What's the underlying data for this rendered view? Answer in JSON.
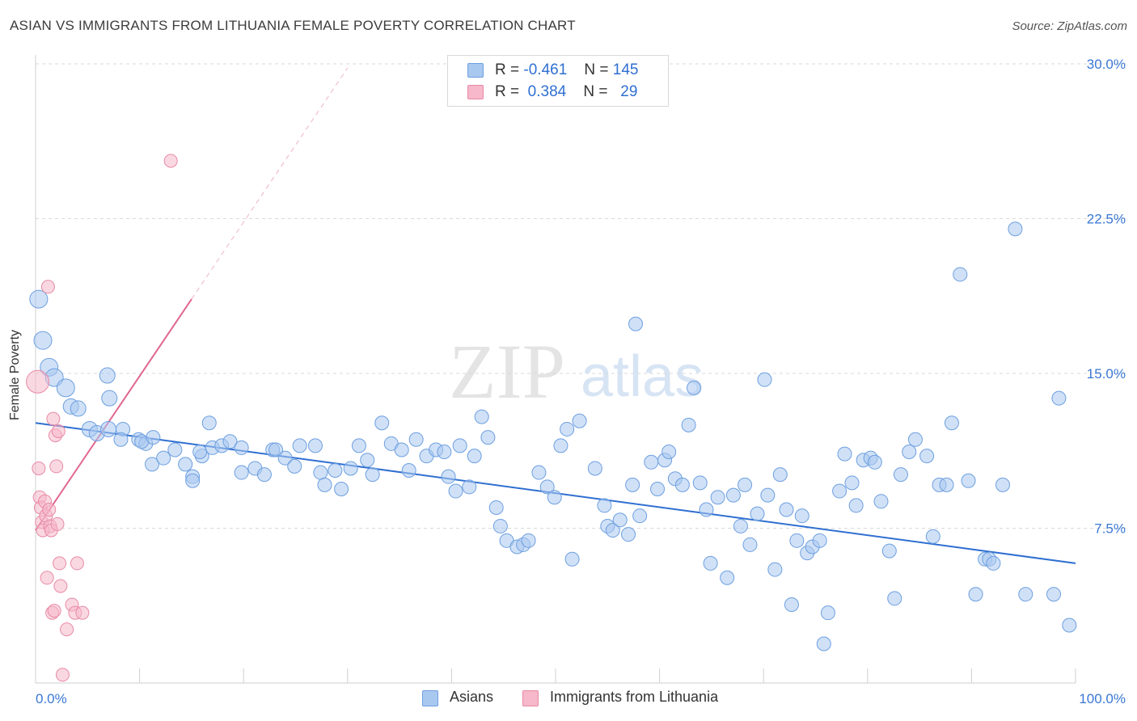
{
  "header": {
    "title": "ASIAN VS IMMIGRANTS FROM LITHUANIA FEMALE POVERTY CORRELATION CHART",
    "source": "Source: ZipAtlas.com"
  },
  "watermark": {
    "zip": "ZIP",
    "atlas": "atlas"
  },
  "legend": {
    "rows": [
      {
        "r_label": "R =",
        "r_value": "-0.461",
        "n_label": "N =",
        "n_value": "145",
        "color": "#a9c8f0"
      },
      {
        "r_label": "R =",
        "r_value": "0.384",
        "n_label": "N =",
        "n_value": "29",
        "color": "#f6b8ca"
      }
    ],
    "bottom": [
      {
        "label": "Asians",
        "color": "#a9c8f0"
      },
      {
        "label": "Immigrants from Lithuania",
        "color": "#f6b8ca"
      }
    ]
  },
  "colors": {
    "blue_fill": "#a9c8f0",
    "blue_stroke": "#6d9fe0",
    "blue_line": "#2f6fd1",
    "pink_fill": "#f6b8ca",
    "pink_stroke": "#e88aa6",
    "pink_line": "#e06690",
    "grid": "#d9d9d9",
    "axis_text": "#3a78d4"
  },
  "chart_data": {
    "type": "scatter",
    "title": "ASIAN VS IMMIGRANTS FROM LITHUANIA FEMALE POVERTY CORRELATION CHART",
    "xlabel": "",
    "ylabel": "Female Poverty",
    "xlim": [
      0,
      100
    ],
    "ylim": [
      0,
      30
    ],
    "x_tick_labels": [
      "0.0%",
      "100.0%"
    ],
    "y_ticks": [
      7.5,
      15.0,
      22.5,
      30.0
    ],
    "y_tick_labels": [
      "7.5%",
      "15.0%",
      "22.5%",
      "30.0%"
    ],
    "grid": "horizontal dashed",
    "series": [
      {
        "name": "Asians",
        "color": "#a9c8f0",
        "trend": {
          "x": [
            0,
            100
          ],
          "y": [
            12.6,
            5.8
          ]
        },
        "points": [
          [
            0.3,
            18.6
          ],
          [
            0.7,
            16.6
          ],
          [
            1.3,
            15.3
          ],
          [
            1.8,
            14.8
          ],
          [
            2.9,
            14.3
          ],
          [
            3.4,
            13.4
          ],
          [
            4.1,
            13.3
          ],
          [
            6.9,
            14.9
          ],
          [
            7.1,
            13.8
          ],
          [
            5.2,
            12.3
          ],
          [
            5.9,
            12.1
          ],
          [
            7.0,
            12.3
          ],
          [
            8.4,
            12.3
          ],
          [
            8.2,
            11.8
          ],
          [
            9.9,
            11.8
          ],
          [
            10.6,
            11.6
          ],
          [
            10.2,
            11.7
          ],
          [
            11.3,
            11.9
          ],
          [
            11.2,
            10.6
          ],
          [
            12.3,
            10.9
          ],
          [
            13.4,
            11.3
          ],
          [
            14.4,
            10.6
          ],
          [
            15.1,
            10.0
          ],
          [
            15.1,
            9.8
          ],
          [
            16.0,
            11.0
          ],
          [
            16.7,
            12.6
          ],
          [
            15.8,
            11.2
          ],
          [
            17.0,
            11.4
          ],
          [
            17.9,
            11.5
          ],
          [
            18.7,
            11.7
          ],
          [
            19.8,
            11.4
          ],
          [
            19.8,
            10.2
          ],
          [
            21.1,
            10.4
          ],
          [
            22.0,
            10.1
          ],
          [
            22.8,
            11.3
          ],
          [
            23.1,
            11.3
          ],
          [
            24.0,
            10.9
          ],
          [
            24.9,
            10.5
          ],
          [
            25.4,
            11.5
          ],
          [
            26.9,
            11.5
          ],
          [
            27.4,
            10.2
          ],
          [
            27.8,
            9.6
          ],
          [
            28.8,
            10.3
          ],
          [
            29.4,
            9.4
          ],
          [
            30.3,
            10.4
          ],
          [
            31.1,
            11.5
          ],
          [
            31.9,
            10.8
          ],
          [
            32.4,
            10.1
          ],
          [
            33.3,
            12.6
          ],
          [
            34.2,
            11.6
          ],
          [
            35.2,
            11.3
          ],
          [
            35.9,
            10.3
          ],
          [
            36.6,
            11.8
          ],
          [
            37.6,
            11.0
          ],
          [
            38.5,
            11.3
          ],
          [
            39.3,
            11.2
          ],
          [
            39.7,
            10.0
          ],
          [
            40.4,
            9.3
          ],
          [
            40.8,
            11.5
          ],
          [
            41.7,
            9.5
          ],
          [
            42.2,
            11.0
          ],
          [
            42.9,
            12.9
          ],
          [
            43.5,
            11.9
          ],
          [
            44.3,
            8.5
          ],
          [
            44.7,
            7.6
          ],
          [
            45.3,
            6.9
          ],
          [
            46.3,
            6.6
          ],
          [
            46.9,
            6.7
          ],
          [
            47.4,
            6.9
          ],
          [
            48.4,
            10.2
          ],
          [
            49.2,
            9.5
          ],
          [
            49.9,
            9.0
          ],
          [
            50.5,
            11.5
          ],
          [
            51.1,
            12.3
          ],
          [
            51.6,
            6.0
          ],
          [
            52.3,
            12.7
          ],
          [
            53.8,
            10.4
          ],
          [
            54.7,
            8.6
          ],
          [
            55.0,
            7.6
          ],
          [
            55.5,
            7.4
          ],
          [
            56.2,
            7.9
          ],
          [
            57.0,
            7.2
          ],
          [
            57.4,
            9.6
          ],
          [
            57.7,
            17.4
          ],
          [
            58.1,
            8.1
          ],
          [
            59.2,
            10.7
          ],
          [
            59.8,
            9.4
          ],
          [
            60.5,
            10.8
          ],
          [
            60.9,
            11.2
          ],
          [
            61.5,
            9.9
          ],
          [
            62.2,
            9.6
          ],
          [
            62.8,
            12.5
          ],
          [
            63.3,
            14.3
          ],
          [
            63.9,
            9.7
          ],
          [
            64.5,
            8.4
          ],
          [
            64.9,
            5.8
          ],
          [
            65.6,
            9.0
          ],
          [
            66.5,
            5.1
          ],
          [
            67.1,
            9.1
          ],
          [
            67.8,
            7.6
          ],
          [
            68.2,
            9.6
          ],
          [
            68.7,
            6.7
          ],
          [
            69.4,
            8.2
          ],
          [
            70.1,
            14.7
          ],
          [
            70.4,
            9.1
          ],
          [
            71.1,
            5.5
          ],
          [
            71.6,
            10.1
          ],
          [
            72.2,
            8.4
          ],
          [
            72.7,
            3.8
          ],
          [
            73.2,
            6.9
          ],
          [
            73.7,
            8.1
          ],
          [
            74.2,
            6.3
          ],
          [
            74.7,
            6.6
          ],
          [
            75.4,
            6.9
          ],
          [
            75.8,
            1.9
          ],
          [
            76.2,
            3.4
          ],
          [
            77.3,
            9.3
          ],
          [
            77.8,
            11.1
          ],
          [
            78.5,
            9.7
          ],
          [
            78.9,
            8.6
          ],
          [
            79.6,
            10.8
          ],
          [
            80.3,
            10.9
          ],
          [
            80.7,
            10.7
          ],
          [
            81.3,
            8.8
          ],
          [
            82.1,
            6.4
          ],
          [
            82.6,
            4.1
          ],
          [
            83.2,
            10.1
          ],
          [
            84.0,
            11.2
          ],
          [
            84.6,
            11.8
          ],
          [
            85.7,
            11.0
          ],
          [
            86.3,
            7.1
          ],
          [
            86.9,
            9.6
          ],
          [
            87.6,
            9.6
          ],
          [
            88.1,
            12.6
          ],
          [
            88.9,
            19.8
          ],
          [
            89.7,
            9.8
          ],
          [
            90.4,
            4.3
          ],
          [
            91.3,
            6.0
          ],
          [
            91.7,
            6.0
          ],
          [
            92.1,
            5.8
          ],
          [
            93.0,
            9.6
          ],
          [
            94.2,
            22.0
          ],
          [
            95.2,
            4.3
          ],
          [
            97.9,
            4.3
          ],
          [
            98.4,
            13.8
          ],
          [
            99.4,
            2.8
          ]
        ]
      },
      {
        "name": "Immigrants from Lithuania",
        "color": "#f6b8ca",
        "trend": {
          "x": [
            0,
            15
          ],
          "y": [
            7.4,
            18.6
          ],
          "extended_to": [
            30,
            29.8
          ]
        },
        "points": [
          [
            0.2,
            14.6
          ],
          [
            0.3,
            10.4
          ],
          [
            0.4,
            9.0
          ],
          [
            0.5,
            8.5
          ],
          [
            0.6,
            7.8
          ],
          [
            0.7,
            7.4
          ],
          [
            0.9,
            8.8
          ],
          [
            1.0,
            8.1
          ],
          [
            1.1,
            5.1
          ],
          [
            1.2,
            19.2
          ],
          [
            1.3,
            8.4
          ],
          [
            1.4,
            7.6
          ],
          [
            1.5,
            7.4
          ],
          [
            1.6,
            3.4
          ],
          [
            1.7,
            12.8
          ],
          [
            1.8,
            3.5
          ],
          [
            1.9,
            12.0
          ],
          [
            2.0,
            10.5
          ],
          [
            2.1,
            7.7
          ],
          [
            2.2,
            12.2
          ],
          [
            2.3,
            5.8
          ],
          [
            2.4,
            4.7
          ],
          [
            2.6,
            0.4
          ],
          [
            3.0,
            2.6
          ],
          [
            3.5,
            3.8
          ],
          [
            3.8,
            3.4
          ],
          [
            4.0,
            5.8
          ],
          [
            4.5,
            3.4
          ],
          [
            13.0,
            25.3
          ]
        ]
      }
    ]
  }
}
